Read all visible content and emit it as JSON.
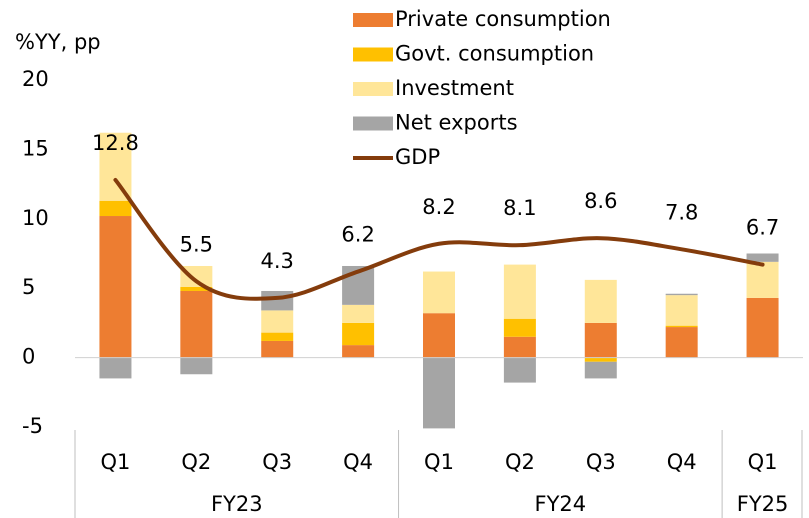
{
  "chart_data": {
    "type": "stacked_bar_line",
    "y_axis_label": "%YY, pp",
    "category_groups": [
      {
        "label": "FY23",
        "categories": [
          "Q1",
          "Q2",
          "Q3",
          "Q4"
        ]
      },
      {
        "label": "FY24",
        "categories": [
          "Q1",
          "Q2",
          "Q3",
          "Q4"
        ]
      },
      {
        "label": "FY25",
        "categories": [
          "Q1"
        ]
      }
    ],
    "series": [
      {
        "name": "Private consumption",
        "color": "#ED7D31",
        "kind": "bar",
        "values": [
          10.2,
          4.8,
          1.2,
          0.9,
          3.2,
          1.5,
          2.5,
          2.2,
          4.3
        ]
      },
      {
        "name": "Govt. consumption",
        "color": "#FFC000",
        "kind": "bar",
        "values": [
          1.1,
          0.3,
          0.6,
          1.6,
          0,
          1.3,
          -0.3,
          0.1,
          0
        ]
      },
      {
        "name": "Investment",
        "color": "#FFE699",
        "kind": "bar",
        "values": [
          4.9,
          1.5,
          1.6,
          1.3,
          3.0,
          3.9,
          3.1,
          2.2,
          2.6
        ]
      },
      {
        "name": "Net exports",
        "color": "#A5A5A5",
        "kind": "bar",
        "values": [
          -1.5,
          -1.2,
          1.4,
          2.8,
          -5.1,
          -1.8,
          -1.2,
          0.1,
          0.6
        ]
      },
      {
        "name": "GDP",
        "color": "#843C0C",
        "kind": "line",
        "values": [
          12.8,
          5.5,
          4.3,
          6.2,
          8.2,
          8.1,
          8.6,
          7.8,
          6.7
        ]
      }
    ],
    "ylim": [
      -5,
      20
    ],
    "yticks": [
      -5,
      0,
      5,
      10,
      15,
      20
    ],
    "legend": "top"
  }
}
